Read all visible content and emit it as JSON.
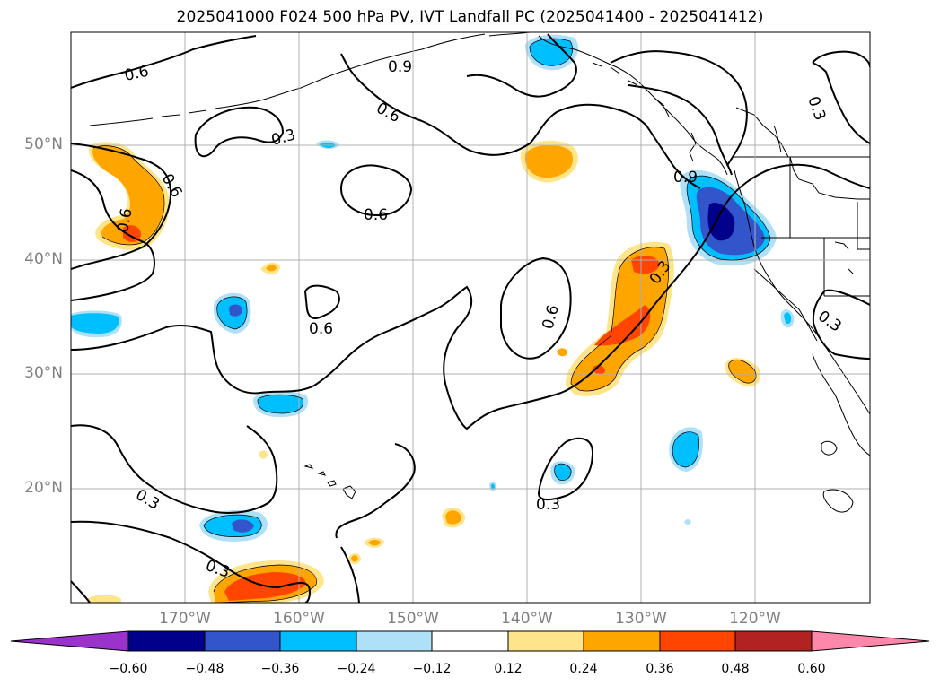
{
  "title": "2025041000 F024 500 hPa PV, IVT Landfall PC (2025041400 - 2025041412)",
  "lat_labels": [
    "50°N",
    "40°N",
    "30°N",
    "20°N"
  ],
  "lon_labels": [
    "170°W",
    "160°W",
    "150°W",
    "140°W",
    "130°W",
    "120°W"
  ],
  "contour_labels": [
    "0.6",
    "0.9",
    "0.6",
    "0.3",
    "0.6",
    "0.6",
    "0.6",
    "0.6",
    "0.9",
    "0.3",
    "0.3",
    "0.6",
    "0.3",
    "0.3",
    "0.3",
    "0.3"
  ],
  "colorbar": {
    "ticks": [
      "−0.60",
      "−0.48",
      "−0.36",
      "−0.24",
      "−0.12",
      "0.12",
      "0.24",
      "0.36",
      "0.48",
      "0.60"
    ],
    "colors": [
      "#9933cc",
      "#00008b",
      "#3355cc",
      "#00bfff",
      "#aee0f8",
      "#ffffff",
      "#ffe58a",
      "#ffa500",
      "#ff4500",
      "#b22222",
      "#ff88aa"
    ]
  },
  "palette": {
    "pos1": "#ffe58a",
    "pos2": "#ffa500",
    "pos3": "#ff4500",
    "neg1": "#aee0f8",
    "neg2": "#00bfff",
    "neg3": "#3355cc",
    "neg4": "#00008b"
  }
}
